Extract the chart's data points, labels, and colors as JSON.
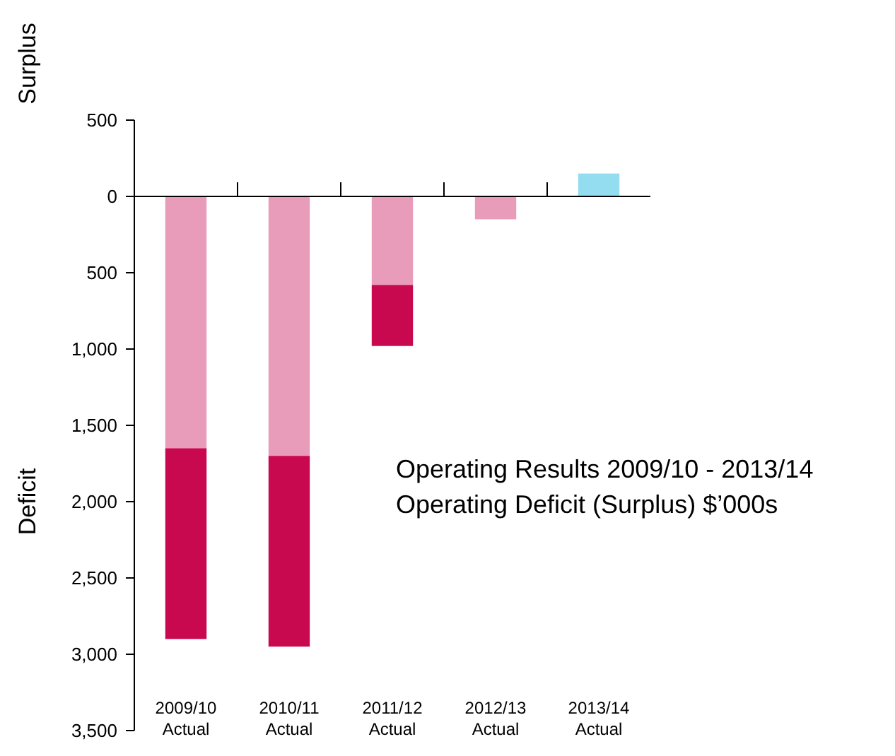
{
  "chart_data": {
    "type": "bar",
    "title": "Operating Results 2009/10 - 2013/14",
    "subtitle": "Operating Deficit (Surplus) $’000s",
    "ylabel": "Deficit",
    "annotations": [
      "Surplus"
    ],
    "categories": [
      "2009/10 Actual",
      "2010/11 Actual",
      "2011/12 Actual",
      "2012/13 Actual",
      "2013/14 Actual"
    ],
    "stacked": true,
    "series": [
      {
        "colors": [
          "#e89cb9",
          "#e89cb9",
          "#e89cb9",
          "#e89cb9",
          "#94dcf0"
        ],
        "values": [
          1650,
          1700,
          580,
          150,
          -150
        ]
      },
      {
        "color": "#c8084f",
        "values": [
          1250,
          1250,
          400,
          null,
          null
        ]
      }
    ],
    "ylim": [
      3500,
      -500
    ],
    "yticks": [
      {
        "value": -500,
        "label": "500"
      },
      0,
      500,
      {
        "value": 1000,
        "label": "1,000"
      },
      {
        "value": 1500,
        "label": "1,500"
      },
      {
        "value": 2000,
        "label": "2,000"
      },
      {
        "value": 2500,
        "label": "2,500"
      },
      {
        "value": 3000,
        "label": "3,000"
      },
      {
        "value": 3500,
        "label": "3,500"
      }
    ]
  }
}
